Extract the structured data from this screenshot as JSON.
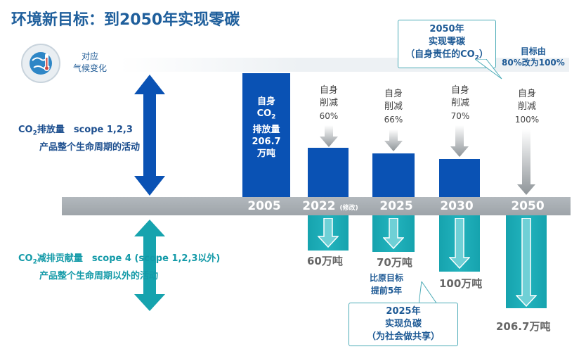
{
  "header": {
    "title": "环境新目标：到2050年实现零碳"
  },
  "legend": {
    "climate_label": [
      "对应",
      "气候变化"
    ],
    "emission": {
      "line1_prefix": "CO",
      "line1_sub": "2",
      "line1_rest": "排放量　scope 1,2,3",
      "line2": "产品整个生命周期的活动"
    },
    "reduction_contribution": {
      "line1_prefix": "CO",
      "line1_sub": "2",
      "line1_rest": "减排贡献量　scope 4 (scope 1,2,3以外)",
      "line2": "产品整个生命周期以外的活动"
    }
  },
  "timeline": {
    "years": [
      "2005",
      "2022",
      "2025",
      "2030",
      "2050"
    ],
    "revised_note": "(修改)"
  },
  "base_bar": {
    "line1": "自身",
    "line2_prefix": "CO",
    "line2_sub": "2",
    "line3": "排放量",
    "line4": "206.7",
    "line5": "万吨"
  },
  "reductions": [
    {
      "line1": "自身",
      "line2": "削减",
      "pct": "60%"
    },
    {
      "line1": "自身",
      "line2": "削减",
      "pct": "66%"
    },
    {
      "line1": "自身",
      "line2": "削减",
      "pct": "70%"
    },
    {
      "line1": "自身",
      "line2": "削减",
      "pct": "100%"
    }
  ],
  "contributions": [
    "60万吨",
    "70万吨",
    "100万吨",
    "206.7万吨"
  ],
  "callouts": {
    "zero_carbon_2050": {
      "line1": "2050年",
      "line2": "实现零碳",
      "line3_prefix": "（自身责任的CO",
      "line3_sub": "2",
      "line3_suffix": "）"
    },
    "target_change": {
      "line1": "目标由",
      "line2": "80%改为100%"
    },
    "ahead_schedule": {
      "line1": "比原目标",
      "line2": "提前5年"
    },
    "negative_2025": {
      "line1": "2025年",
      "line2": "实现负碳",
      "line3": "（为社会做共享）"
    }
  },
  "colors": {
    "navy_title": "#1f5f9c",
    "emission_blue": "#0a52b4",
    "contribution_cyan": "#16a3ae",
    "timeline_gray": "#a8aeb3"
  }
}
